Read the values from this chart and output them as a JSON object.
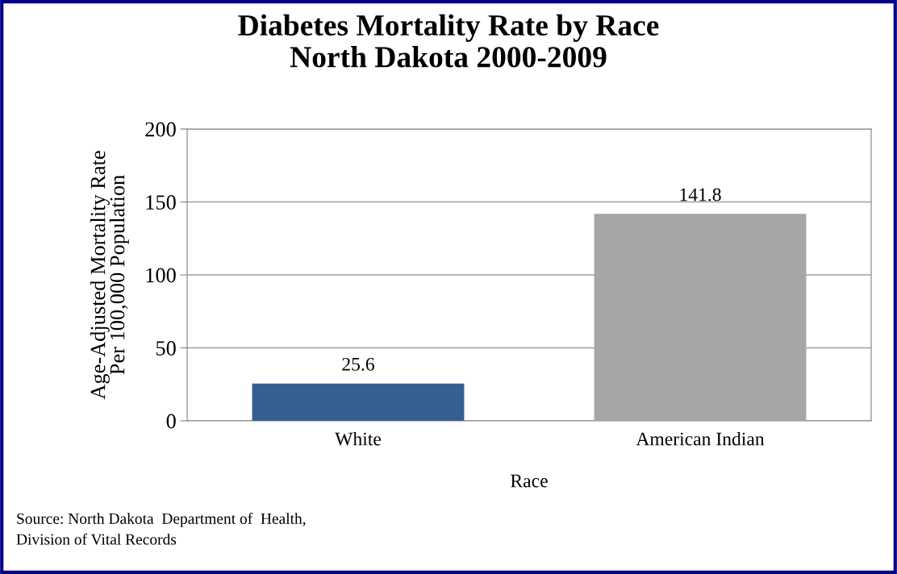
{
  "chart_data": {
    "type": "bar",
    "title": "Diabetes Mortality Rate by Race\nNorth Dakota 2000-2009",
    "xlabel": "Race",
    "ylabel": "Age-Adjusted Mortality Rate\nPer 100,000 Population",
    "categories": [
      "White",
      "American Indian"
    ],
    "values": [
      25.6,
      141.8
    ],
    "colors": [
      "#376092",
      "#a6a6a6"
    ],
    "ylim": [
      0,
      200
    ],
    "yticks": [
      0,
      50,
      100,
      150,
      200
    ],
    "grid": "y",
    "data_labels": true,
    "legend": false,
    "annotations": [
      "Source: North Dakota  Department of  Health,\nDivision of Vital Records"
    ]
  }
}
